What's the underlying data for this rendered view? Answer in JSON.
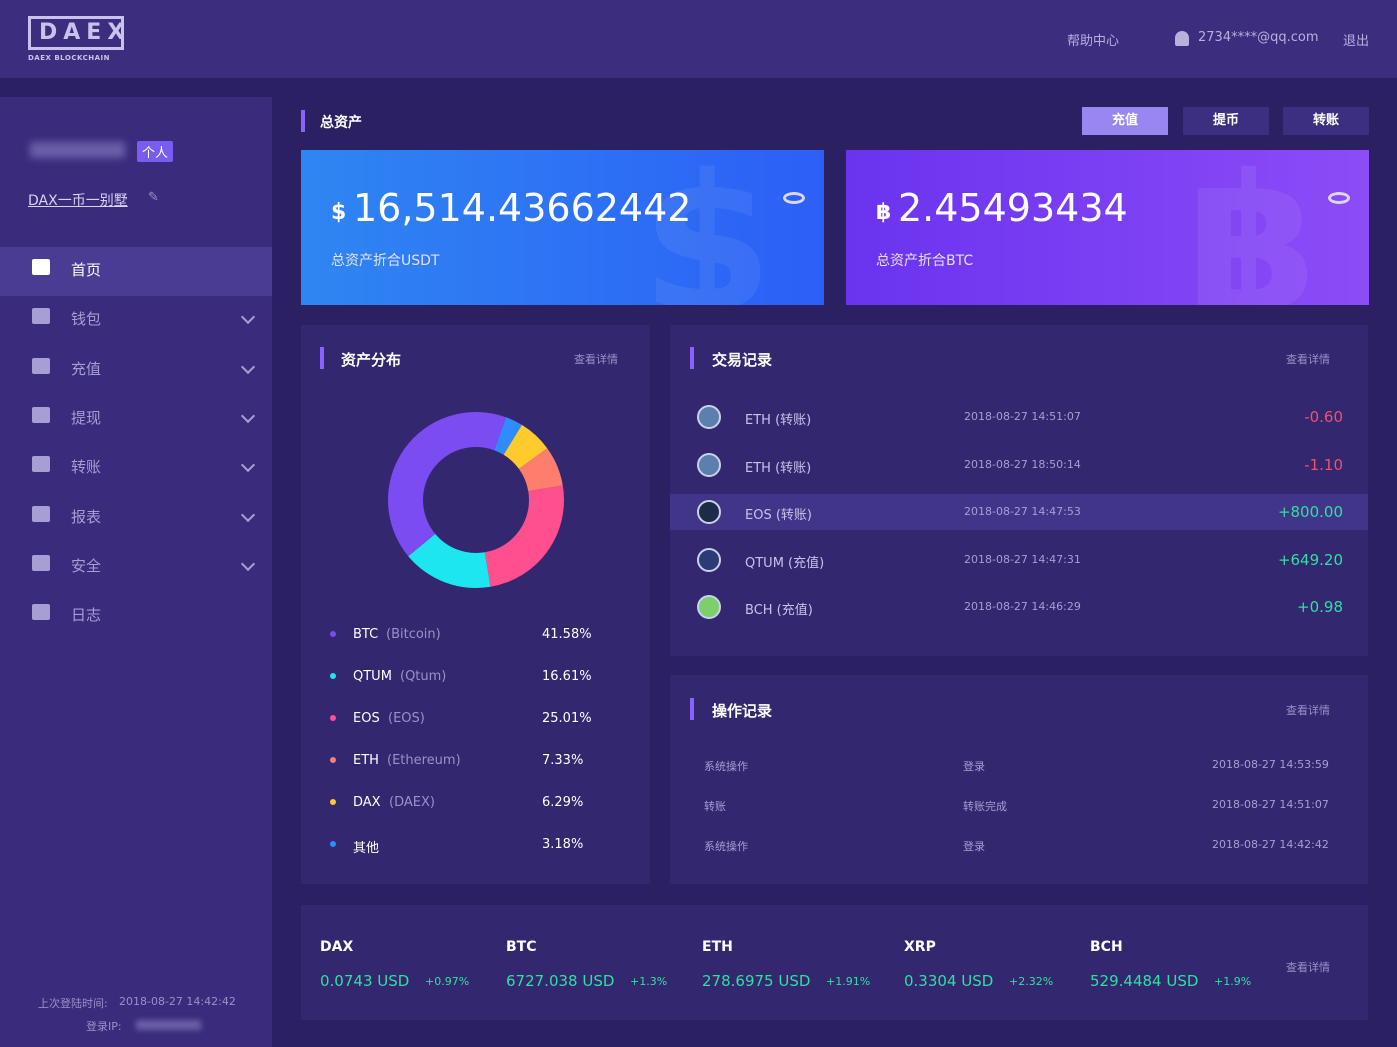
{
  "header": {
    "logo": "DAEX",
    "logo_sub": "DAEX BLOCKCHAIN",
    "help": "帮助中心",
    "user": "2734****@qq.com",
    "logout": "退出"
  },
  "sidebar": {
    "badge": "个人",
    "nickname": "DAX一币一别墅",
    "menu": [
      "首页",
      "钱包",
      "充值",
      "提现",
      "转账",
      "报表",
      "安全",
      "日志"
    ],
    "last_login_label": "上次登陆时间:",
    "last_login_time": "2018-08-27 14:42:42",
    "ip_label": "登录IP:"
  },
  "assets": {
    "title": "总资产",
    "buttons": [
      "充值",
      "提币",
      "转账"
    ],
    "usdt": {
      "symbol": "$",
      "value": "16,514.43662442",
      "label": "总资产折合USDT"
    },
    "btc": {
      "symbol": "฿",
      "value": "2.45493434",
      "label": "总资产折合BTC"
    }
  },
  "chart_data": {
    "type": "pie",
    "title": "资产分布",
    "more": "查看详情",
    "donut": true,
    "categories": [
      "BTC",
      "QTUM",
      "EOS",
      "ETH",
      "DAX",
      "其他"
    ],
    "subnames": [
      "(Bitcoin)",
      "(Qtum)",
      "(EOS)",
      "(Ethereum)",
      "(DAEX)",
      null
    ],
    "values": [
      41.58,
      16.61,
      25.01,
      7.33,
      6.29,
      3.18
    ],
    "value_labels": [
      "41.58%",
      "16.61%",
      "25.01%",
      "7.33%",
      "6.29%",
      "3.18%"
    ],
    "colors": [
      "#7b4cf2",
      "#1ee6f0",
      "#ff4f8e",
      "#ff7d6c",
      "#ffca2c",
      "#2f8cff"
    ]
  },
  "transactions": {
    "title": "交易记录",
    "more": "查看详情",
    "rows": [
      {
        "coin": "ETH (转账)",
        "time": "2018-08-27  14:51:07",
        "amount": "-0.60"
      },
      {
        "coin": "ETH (转账)",
        "time": "2018-08-27  18:50:14",
        "amount": "-1.10"
      },
      {
        "coin": "EOS (转账)",
        "time": "2018-08-27  14:47:53",
        "amount": "+800.00"
      },
      {
        "coin": "QTUM (充值)",
        "time": "2018-08-27  14:47:31",
        "amount": "+649.20"
      },
      {
        "coin": "BCH (充值)",
        "time": "2018-08-27  14:46:29",
        "amount": "+0.98"
      }
    ]
  },
  "operations": {
    "title": "操作记录",
    "more": "查看详情",
    "rows": [
      {
        "type": "系统操作",
        "action": "登录",
        "time": "2018-08-27  14:53:59"
      },
      {
        "type": "转账",
        "action": "转账完成",
        "time": "2018-08-27  14:51:07"
      },
      {
        "type": "系统操作",
        "action": "登录",
        "time": "2018-08-27  14:42:42"
      }
    ]
  },
  "tickers": {
    "more": "查看详情",
    "items": [
      {
        "name": "DAX",
        "price": "0.0743 USD",
        "change": "+0.97%"
      },
      {
        "name": "BTC",
        "price": "6727.038 USD",
        "change": "+1.3%"
      },
      {
        "name": "ETH",
        "price": "278.6975 USD",
        "change": "+1.91%"
      },
      {
        "name": "XRP",
        "price": "0.3304 USD",
        "change": "+2.32%"
      },
      {
        "name": "BCH",
        "price": "529.4484 USD",
        "change": "+1.9%"
      }
    ]
  }
}
